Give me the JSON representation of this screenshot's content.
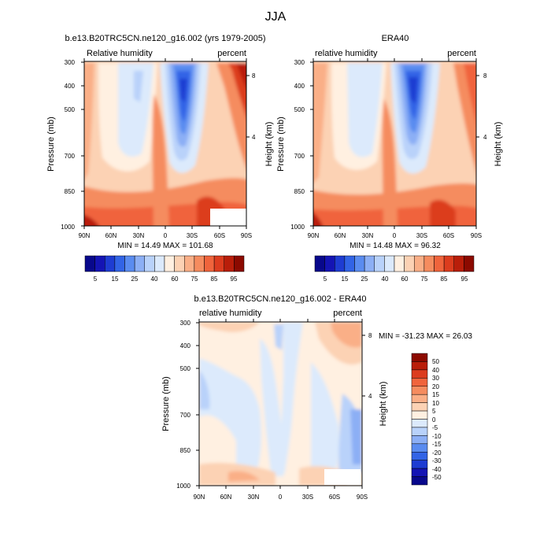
{
  "figure_title": "JJA",
  "chart_data": [
    {
      "type": "heatmap",
      "title": "b.e13.B20TRC5CN.ne120_g16.002 (yrs 1979-2005)",
      "left_label": "Relative humidity",
      "right_label": "percent",
      "ylabel": "Pressure (mb)",
      "ylabel_right": "Height (km)",
      "x_ticks": [
        "90N",
        "60N",
        "30N",
        "0",
        "30S",
        "60S",
        "90S"
      ],
      "y_ticks": [
        "300",
        "400",
        "500",
        "700",
        "850",
        "1000"
      ],
      "y_ticks_right": [
        "8",
        "4"
      ],
      "stats": "MIN = 14.49  MAX = 101.68",
      "colorbar_labels": [
        "5",
        "15",
        "25",
        "40",
        "60",
        "75",
        "85",
        "95"
      ],
      "ylim": [
        1000,
        300
      ],
      "xlim": [
        90,
        -90
      ]
    },
    {
      "type": "heatmap",
      "title": "ERA40",
      "left_label": "relative humidity",
      "right_label": "percent",
      "ylabel": "Pressure (mb)",
      "ylabel_right": "Height (km)",
      "x_ticks": [
        "90N",
        "60N",
        "30N",
        "0",
        "30S",
        "60S",
        "90S"
      ],
      "y_ticks": [
        "300",
        "400",
        "500",
        "700",
        "850",
        "1000"
      ],
      "y_ticks_right": [
        "8",
        "4"
      ],
      "stats": "MIN = 14.48  MAX = 96.32",
      "colorbar_labels": [
        "5",
        "15",
        "25",
        "40",
        "60",
        "75",
        "85",
        "95"
      ],
      "ylim": [
        1000,
        300
      ],
      "xlim": [
        90,
        -90
      ]
    },
    {
      "type": "heatmap",
      "title": "b.e13.B20TRC5CN.ne120_g16.002 - ERA40",
      "left_label": "relative humidity",
      "right_label": "percent",
      "ylabel": "Pressure (mb)",
      "ylabel_right": "Height (km)",
      "x_ticks": [
        "90N",
        "60N",
        "30N",
        "0",
        "30S",
        "60S",
        "90S"
      ],
      "y_ticks": [
        "300",
        "400",
        "500",
        "700",
        "850",
        "1000"
      ],
      "y_ticks_right": [
        "8",
        "4"
      ],
      "stats": "MIN = -31.23  MAX =  26.03",
      "colorbar_labels": [
        "50",
        "40",
        "30",
        "20",
        "15",
        "10",
        "5",
        "0",
        "-5",
        "-10",
        "-15",
        "-20",
        "-30",
        "-40",
        "-50"
      ],
      "ylim": [
        1000,
        300
      ],
      "xlim": [
        90,
        -90
      ]
    }
  ],
  "colors": {
    "abs_scale": [
      "#08088c",
      "#1414b4",
      "#1e3cd2",
      "#3264e6",
      "#5a8cf0",
      "#8caff5",
      "#b9d2fa",
      "#dceafc",
      "#fff0e1",
      "#fcd2b4",
      "#faaf87",
      "#f58c5f",
      "#f0643c",
      "#dc3c1e",
      "#b91e0a",
      "#8c0a00"
    ],
    "diff_scale": [
      "#8c0a00",
      "#b91e0a",
      "#dc3c1e",
      "#f0643c",
      "#f58c5f",
      "#faaf87",
      "#fcd2b4",
      "#fff0e1",
      "#dceafc",
      "#b9d2fa",
      "#8caff5",
      "#5a8cf0",
      "#3264e6",
      "#1e3cd2",
      "#1414b4",
      "#08088c"
    ]
  }
}
